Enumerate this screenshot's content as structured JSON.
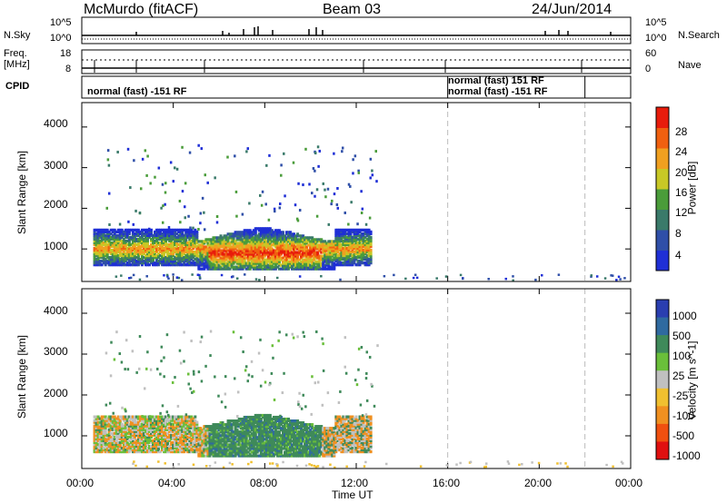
{
  "header": {
    "station": "McMurdo (fitACF)",
    "beam": "Beam 03",
    "date": "24/Jun/2014"
  },
  "side_labels": {
    "nsky": "N.Sky",
    "nsearch": "N.Search",
    "freq_line1": "Freq.",
    "freq_line2": "[MHz]",
    "nave": "Nave",
    "cpid": "CPID"
  },
  "noise_panel": {
    "left_ticks": [
      "10^5",
      "10^0"
    ],
    "right_ticks": [
      "10^5",
      "10^0"
    ]
  },
  "freq_panel": {
    "left_ticks": [
      "18",
      "8"
    ],
    "right_ticks": [
      "60",
      "0"
    ]
  },
  "cpid_panel": {
    "labels": [
      "normal (fast) -151 RF",
      "normal (fast) 151 RF",
      "normal (fast) -151 RF"
    ],
    "change_times_hours": [
      16.0,
      22.0
    ]
  },
  "colors": {
    "power_scale": [
      "#1f2fd6",
      "#2f4fa8",
      "#3a7a6a",
      "#4a9c3a",
      "#c8c826",
      "#f0a020",
      "#f06010",
      "#e81c0c"
    ],
    "velocity_scale": [
      "#2a3eb0",
      "#2f6aa0",
      "#3f8a5a",
      "#6abf3a",
      "#c0c0c0",
      "#f0c030",
      "#f09020",
      "#f05010",
      "#e01010"
    ]
  },
  "chart_data": {
    "type": "heatmap",
    "x_ticks": [
      "00:00",
      "04:00",
      "08:00",
      "12:00",
      "16:00",
      "20:00",
      "00:00"
    ],
    "x_range_hours": [
      0,
      24
    ],
    "xlabel": "Time UT",
    "panels": [
      {
        "name": "power",
        "ylabel": "Slant Range [km]",
        "y_ticks": [
          "1000",
          "2000",
          "3000",
          "4000"
        ],
        "ylim": [
          200,
          4600
        ],
        "colorbar_label": "Power [dB]",
        "colorbar_ticks": [
          "4",
          "8",
          "12",
          "16",
          "20",
          "24",
          "28"
        ],
        "scale_range": [
          0,
          32
        ]
      },
      {
        "name": "velocity",
        "ylabel": "Slant Range [km]",
        "y_ticks": [
          "1000",
          "2000",
          "3000",
          "4000"
        ],
        "ylim": [
          200,
          4600
        ],
        "colorbar_label": "Velocity [m s^-1]",
        "colorbar_ticks": [
          "1000",
          "500",
          "100",
          "25",
          "-25",
          "-100",
          "-500",
          "-1000"
        ]
      }
    ],
    "dashed_verticals_hours": [
      16.0,
      22.0
    ],
    "echo_regions": [
      {
        "t_start": 0.5,
        "t_end": 12.5,
        "range_low": 500,
        "range_high": 1600,
        "description": "main E/F region echo band"
      },
      {
        "t_start": 5.5,
        "t_end": 10.5,
        "range_low": 500,
        "range_high": 1300,
        "description": "strongest power core"
      }
    ]
  }
}
